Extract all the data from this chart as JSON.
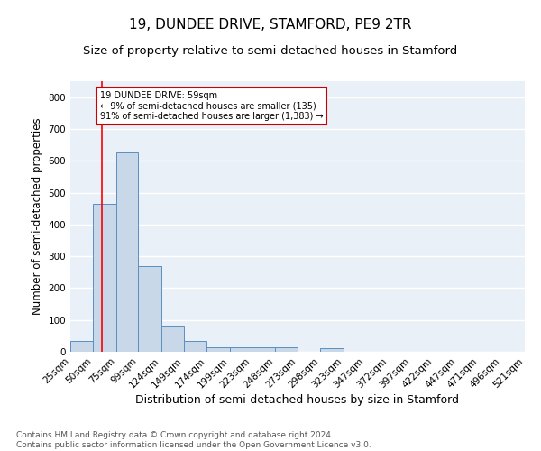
{
  "title": "19, DUNDEE DRIVE, STAMFORD, PE9 2TR",
  "subtitle": "Size of property relative to semi-detached houses in Stamford",
  "xlabel": "Distribution of semi-detached houses by size in Stamford",
  "ylabel": "Number of semi-detached properties",
  "bins": [
    "25sqm",
    "50sqm",
    "75sqm",
    "99sqm",
    "124sqm",
    "149sqm",
    "174sqm",
    "199sqm",
    "223sqm",
    "248sqm",
    "273sqm",
    "298sqm",
    "323sqm",
    "347sqm",
    "372sqm",
    "397sqm",
    "422sqm",
    "447sqm",
    "471sqm",
    "496sqm",
    "521sqm"
  ],
  "bin_edges": [
    25,
    50,
    75,
    99,
    124,
    149,
    174,
    199,
    223,
    248,
    273,
    298,
    323,
    347,
    372,
    397,
    422,
    447,
    471,
    496,
    521
  ],
  "counts": [
    35,
    465,
    625,
    268,
    82,
    35,
    15,
    13,
    13,
    13,
    0,
    10,
    0,
    0,
    0,
    0,
    0,
    0,
    0,
    0
  ],
  "bar_color": "#c8d8e8",
  "bar_edge_color": "#5a8fc0",
  "background_color": "#eaf0f8",
  "grid_color": "#ffffff",
  "red_line_x": 59,
  "annotation_text": "19 DUNDEE DRIVE: 59sqm\n← 9% of semi-detached houses are smaller (135)\n91% of semi-detached houses are larger (1,383) →",
  "annotation_box_color": "#ffffff",
  "annotation_box_edge": "#cc0000",
  "ylim": [
    0,
    850
  ],
  "yticks": [
    0,
    100,
    200,
    300,
    400,
    500,
    600,
    700,
    800
  ],
  "footer": "Contains HM Land Registry data © Crown copyright and database right 2024.\nContains public sector information licensed under the Open Government Licence v3.0.",
  "title_fontsize": 11,
  "subtitle_fontsize": 9.5,
  "xlabel_fontsize": 9,
  "ylabel_fontsize": 8.5,
  "tick_fontsize": 7.5,
  "footer_fontsize": 6.5
}
